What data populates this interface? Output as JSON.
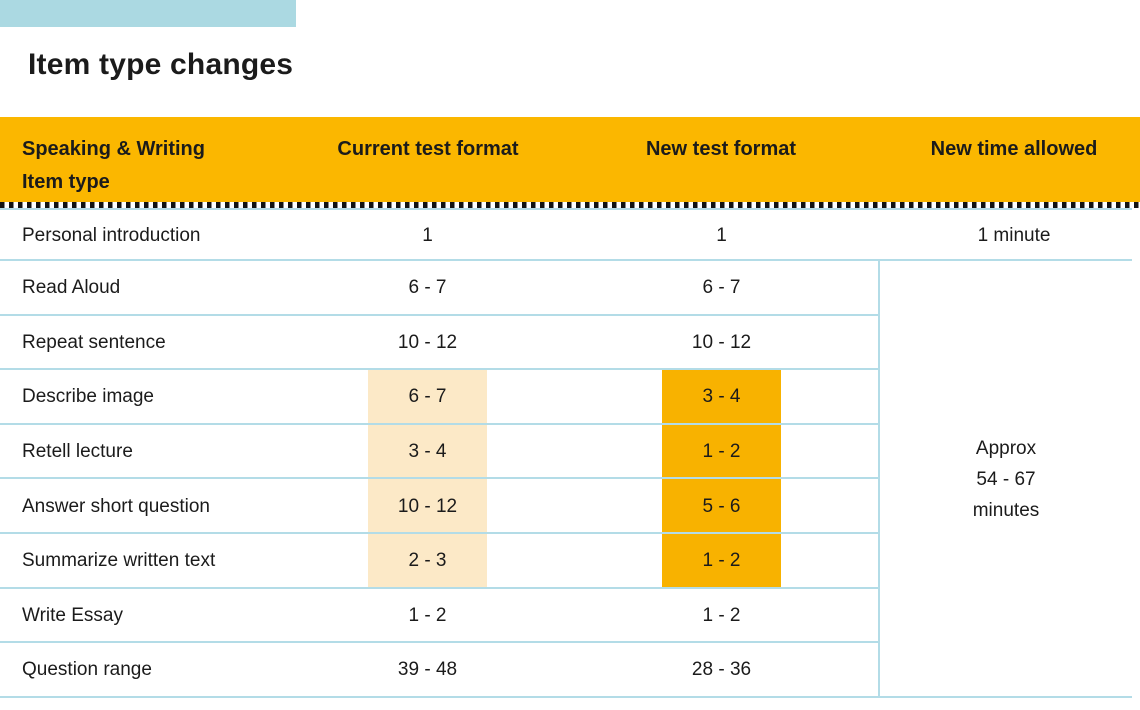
{
  "page": {
    "title": "Item type changes"
  },
  "header": {
    "col1_line1": "Speaking & Writing",
    "col1_line2": "Item type",
    "col2": "Current test format",
    "col3": "New test format",
    "col4": "New time allowed"
  },
  "table": {
    "rows": [
      {
        "item": "Personal introduction",
        "current": "1",
        "new": "1",
        "time": "1 minute"
      },
      {
        "item": "Read Aloud",
        "current": "6 - 7",
        "new": "6 - 7"
      },
      {
        "item": "Repeat sentence",
        "current": "10 - 12",
        "new": "10 - 12"
      },
      {
        "item": "Describe image",
        "current": "6 - 7",
        "new": "3 - 4",
        "highlighted": true
      },
      {
        "item": "Retell lecture",
        "current": "3 - 4",
        "new": "1 - 2",
        "highlighted": true
      },
      {
        "item": "Answer short question",
        "current": "10 - 12",
        "new": "5 - 6",
        "highlighted": true
      },
      {
        "item": "Summarize written text",
        "current": "2 - 3",
        "new": "1 - 2",
        "highlighted": true
      },
      {
        "item": "Write Essay",
        "current": "1 - 2",
        "new": "1 - 2"
      },
      {
        "item": "Question range",
        "current": "39 - 48",
        "new": "28 - 36"
      }
    ],
    "merged_time_cell": {
      "line1": "Approx",
      "line2": "54 - 67",
      "line3": "minutes"
    }
  },
  "colors": {
    "top_bar": "#ABD9E2",
    "header_bg": "#FBB700",
    "highlight_current": "#FCE9C7",
    "highlight_new": "#F8B200",
    "row_line": "#B3DCE7",
    "dots": "#141414",
    "text": "#1B1B1B"
  }
}
